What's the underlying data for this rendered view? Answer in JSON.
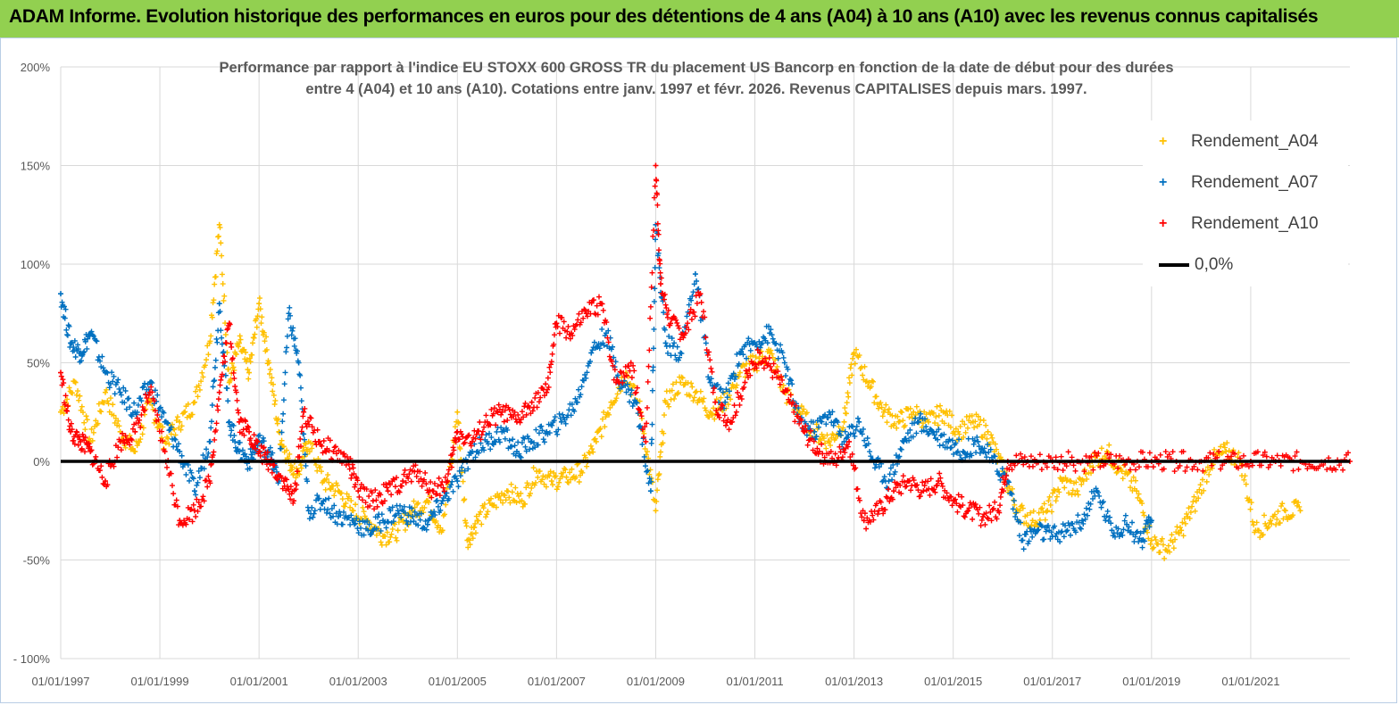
{
  "banner": {
    "title": "ADAM Informe. Evolution historique des performances en euros pour des détentions de 4 ans (A04) à 10 ans (A10) avec les revenus connus capitalisés"
  },
  "colors": {
    "banner": "#92d050",
    "A04": "#ffc000",
    "A07": "#0070c0",
    "A10": "#ff0000",
    "zero": "#000000",
    "grid": "#d9d9d9"
  },
  "chart_data": {
    "type": "scatter",
    "title_line1": "Performance par rapport à l'indice EU STOXX 600 GROSS TR  du placement US Bancorp en fonction de la date de début pour des durées",
    "title_line2": "entre 4 (A04) et 10 ans (A10). Cotations entre janv. 1997 et févr. 2026. Revenus CAPITALISES depuis mars. 1997.",
    "y_ticks": [
      "200%",
      "150%",
      "100%",
      "50%",
      "0%",
      "-50%",
      "- 100%"
    ],
    "y_tick_values": [
      200,
      150,
      100,
      50,
      0,
      -50,
      -100
    ],
    "ylim": [
      -100,
      200
    ],
    "x_ticks": [
      "01/01/1997",
      "01/01/1999",
      "01/01/2001",
      "01/01/2003",
      "01/01/2005",
      "01/01/2007",
      "01/01/2009",
      "01/01/2011",
      "01/01/2013",
      "01/01/2015",
      "01/01/2017",
      "01/01/2019",
      "01/01/2021"
    ],
    "x_tick_years": [
      1997,
      1999,
      2001,
      2003,
      2005,
      2007,
      2009,
      2011,
      2013,
      2015,
      2017,
      2019,
      2021
    ],
    "xlim": [
      1997.0,
      2023.0
    ],
    "legend_position": "top-right",
    "series": [
      {
        "name": "Rendement_A04",
        "color": "#ffc000",
        "points": [
          [
            1997.0,
            25
          ],
          [
            1997.3,
            40
          ],
          [
            1997.6,
            10
          ],
          [
            1997.9,
            35
          ],
          [
            1998.2,
            15
          ],
          [
            1998.5,
            5
          ],
          [
            1998.8,
            30
          ],
          [
            1999.1,
            10
          ],
          [
            1999.4,
            20
          ],
          [
            1999.7,
            30
          ],
          [
            2000.0,
            60
          ],
          [
            2000.2,
            120
          ],
          [
            2000.4,
            40
          ],
          [
            2000.6,
            60
          ],
          [
            2000.8,
            45
          ],
          [
            2001.0,
            80
          ],
          [
            2001.2,
            50
          ],
          [
            2001.4,
            15
          ],
          [
            2001.6,
            0
          ],
          [
            2001.8,
            -5
          ],
          [
            2002.0,
            10
          ],
          [
            2002.3,
            -10
          ],
          [
            2002.6,
            -15
          ],
          [
            2002.9,
            -25
          ],
          [
            2003.2,
            -30
          ],
          [
            2003.5,
            -38
          ],
          [
            2003.8,
            -35
          ],
          [
            2004.1,
            -25
          ],
          [
            2004.4,
            -20
          ],
          [
            2004.7,
            -35
          ],
          [
            2005.0,
            25
          ],
          [
            2005.2,
            -40
          ],
          [
            2005.4,
            -30
          ],
          [
            2005.7,
            -22
          ],
          [
            2006.0,
            -15
          ],
          [
            2006.3,
            -20
          ],
          [
            2006.6,
            -5
          ],
          [
            2006.9,
            -10
          ],
          [
            2007.2,
            -8
          ],
          [
            2007.5,
            -5
          ],
          [
            2007.8,
            10
          ],
          [
            2008.1,
            30
          ],
          [
            2008.4,
            45
          ],
          [
            2008.7,
            25
          ],
          [
            2009.0,
            -25
          ],
          [
            2009.2,
            30
          ],
          [
            2009.5,
            40
          ],
          [
            2009.8,
            35
          ],
          [
            2010.1,
            25
          ],
          [
            2010.4,
            30
          ],
          [
            2010.7,
            45
          ],
          [
            2011.0,
            50
          ],
          [
            2011.3,
            55
          ],
          [
            2011.6,
            35
          ],
          [
            2011.9,
            25
          ],
          [
            2012.2,
            15
          ],
          [
            2012.5,
            10
          ],
          [
            2012.8,
            20
          ],
          [
            2013.0,
            55
          ],
          [
            2013.3,
            40
          ],
          [
            2013.6,
            25
          ],
          [
            2013.9,
            20
          ],
          [
            2014.2,
            25
          ],
          [
            2014.5,
            20
          ],
          [
            2014.8,
            25
          ],
          [
            2015.1,
            15
          ],
          [
            2015.4,
            20
          ],
          [
            2015.7,
            15
          ],
          [
            2016.0,
            -5
          ],
          [
            2016.3,
            -25
          ],
          [
            2016.6,
            -30
          ],
          [
            2016.9,
            -25
          ],
          [
            2017.2,
            -10
          ],
          [
            2017.5,
            -15
          ],
          [
            2017.8,
            0
          ],
          [
            2018.1,
            5
          ],
          [
            2018.4,
            -5
          ],
          [
            2018.7,
            -15
          ],
          [
            2019.0,
            -40
          ],
          [
            2019.3,
            -45
          ],
          [
            2019.6,
            -35
          ],
          [
            2019.9,
            -20
          ],
          [
            2020.2,
            0
          ],
          [
            2020.5,
            5
          ],
          [
            2020.8,
            0
          ],
          [
            2021.1,
            -35
          ],
          [
            2021.4,
            -30
          ],
          [
            2021.7,
            -25
          ],
          [
            2022.0,
            -25
          ]
        ]
      },
      {
        "name": "Rendement_A07",
        "color": "#0070c0",
        "points": [
          [
            1997.0,
            85
          ],
          [
            1997.2,
            60
          ],
          [
            1997.4,
            55
          ],
          [
            1997.6,
            65
          ],
          [
            1997.9,
            45
          ],
          [
            1998.2,
            35
          ],
          [
            1998.5,
            25
          ],
          [
            1998.8,
            40
          ],
          [
            1999.1,
            20
          ],
          [
            1999.4,
            5
          ],
          [
            1999.7,
            -15
          ],
          [
            2000.0,
            10
          ],
          [
            2000.2,
            80
          ],
          [
            2000.4,
            20
          ],
          [
            2000.6,
            5
          ],
          [
            2000.8,
            0
          ],
          [
            2001.0,
            10
          ],
          [
            2001.2,
            5
          ],
          [
            2001.4,
            -10
          ],
          [
            2001.6,
            75
          ],
          [
            2001.8,
            50
          ],
          [
            2002.0,
            -25
          ],
          [
            2002.3,
            -20
          ],
          [
            2002.6,
            -28
          ],
          [
            2002.9,
            -30
          ],
          [
            2003.2,
            -35
          ],
          [
            2003.5,
            -30
          ],
          [
            2003.8,
            -25
          ],
          [
            2004.1,
            -28
          ],
          [
            2004.4,
            -32
          ],
          [
            2004.7,
            -20
          ],
          [
            2005.0,
            -10
          ],
          [
            2005.3,
            5
          ],
          [
            2005.6,
            10
          ],
          [
            2005.9,
            15
          ],
          [
            2006.2,
            5
          ],
          [
            2006.5,
            10
          ],
          [
            2006.8,
            15
          ],
          [
            2007.1,
            20
          ],
          [
            2007.4,
            30
          ],
          [
            2007.7,
            55
          ],
          [
            2008.0,
            65
          ],
          [
            2008.3,
            40
          ],
          [
            2008.6,
            30
          ],
          [
            2008.9,
            -15
          ],
          [
            2009.0,
            120
          ],
          [
            2009.2,
            60
          ],
          [
            2009.5,
            55
          ],
          [
            2009.8,
            95
          ],
          [
            2010.1,
            40
          ],
          [
            2010.4,
            30
          ],
          [
            2010.7,
            55
          ],
          [
            2011.0,
            60
          ],
          [
            2011.3,
            65
          ],
          [
            2011.6,
            50
          ],
          [
            2011.9,
            20
          ],
          [
            2012.2,
            15
          ],
          [
            2012.5,
            25
          ],
          [
            2012.8,
            10
          ],
          [
            2013.1,
            20
          ],
          [
            2013.4,
            0
          ],
          [
            2013.7,
            -10
          ],
          [
            2014.0,
            10
          ],
          [
            2014.3,
            20
          ],
          [
            2014.6,
            15
          ],
          [
            2014.9,
            10
          ],
          [
            2015.2,
            5
          ],
          [
            2015.5,
            10
          ],
          [
            2015.8,
            0
          ],
          [
            2016.1,
            -10
          ],
          [
            2016.4,
            -40
          ],
          [
            2016.7,
            -35
          ],
          [
            2017.0,
            -38
          ],
          [
            2017.3,
            -35
          ],
          [
            2017.6,
            -30
          ],
          [
            2017.9,
            -15
          ],
          [
            2018.2,
            -35
          ],
          [
            2018.5,
            -32
          ],
          [
            2018.8,
            -40
          ],
          [
            2019.0,
            -30
          ]
        ]
      },
      {
        "name": "Rendement_A10",
        "color": "#ff0000",
        "points": [
          [
            1997.0,
            45
          ],
          [
            1997.2,
            15
          ],
          [
            1997.4,
            10
          ],
          [
            1997.6,
            5
          ],
          [
            1997.9,
            -10
          ],
          [
            1998.2,
            10
          ],
          [
            1998.5,
            15
          ],
          [
            1998.8,
            35
          ],
          [
            1999.1,
            5
          ],
          [
            1999.4,
            -30
          ],
          [
            1999.7,
            -25
          ],
          [
            2000.0,
            -10
          ],
          [
            2000.2,
            35
          ],
          [
            2000.4,
            70
          ],
          [
            2000.6,
            20
          ],
          [
            2000.8,
            15
          ],
          [
            2001.0,
            5
          ],
          [
            2001.2,
            0
          ],
          [
            2001.5,
            -10
          ],
          [
            2001.7,
            -20
          ],
          [
            2001.9,
            25
          ],
          [
            2002.2,
            10
          ],
          [
            2002.5,
            5
          ],
          [
            2002.8,
            0
          ],
          [
            2003.0,
            -15
          ],
          [
            2003.3,
            -20
          ],
          [
            2003.6,
            -15
          ],
          [
            2003.9,
            -10
          ],
          [
            2004.2,
            -5
          ],
          [
            2004.5,
            -15
          ],
          [
            2004.8,
            -10
          ],
          [
            2005.0,
            15
          ],
          [
            2005.3,
            10
          ],
          [
            2005.6,
            20
          ],
          [
            2005.9,
            25
          ],
          [
            2006.2,
            20
          ],
          [
            2006.5,
            30
          ],
          [
            2006.8,
            35
          ],
          [
            2007.0,
            70
          ],
          [
            2007.3,
            65
          ],
          [
            2007.6,
            75
          ],
          [
            2007.9,
            80
          ],
          [
            2008.2,
            40
          ],
          [
            2008.5,
            50
          ],
          [
            2008.8,
            10
          ],
          [
            2009.0,
            150
          ],
          [
            2009.1,
            90
          ],
          [
            2009.3,
            70
          ],
          [
            2009.6,
            65
          ],
          [
            2009.9,
            85
          ],
          [
            2010.2,
            30
          ],
          [
            2010.5,
            20
          ],
          [
            2010.8,
            40
          ],
          [
            2011.1,
            55
          ],
          [
            2011.4,
            45
          ],
          [
            2011.7,
            30
          ],
          [
            2012.0,
            15
          ],
          [
            2012.3,
            5
          ],
          [
            2012.6,
            0
          ],
          [
            2012.9,
            10
          ],
          [
            2013.2,
            -30
          ],
          [
            2013.5,
            -25
          ],
          [
            2013.8,
            -15
          ],
          [
            2014.1,
            -10
          ],
          [
            2014.4,
            -15
          ],
          [
            2014.7,
            -10
          ],
          [
            2015.0,
            -20
          ],
          [
            2015.3,
            -25
          ],
          [
            2015.6,
            -28
          ],
          [
            2015.9,
            -25
          ],
          [
            2016.1,
            0
          ],
          [
            2016.5,
            0
          ],
          [
            2017.0,
            0
          ],
          [
            2017.5,
            0
          ],
          [
            2018.0,
            0
          ],
          [
            2018.5,
            0
          ],
          [
            2019.0,
            0
          ],
          [
            2019.5,
            0
          ],
          [
            2020.0,
            0
          ],
          [
            2020.5,
            0
          ],
          [
            2021.0,
            0
          ],
          [
            2021.5,
            0
          ],
          [
            2022.0,
            0
          ],
          [
            2022.5,
            0
          ],
          [
            2023.0,
            0
          ]
        ]
      }
    ],
    "reference_line": {
      "name": "0,0%",
      "y": 0
    },
    "legend": [
      {
        "label": "Rendement_A04",
        "kind": "marker",
        "color": "#ffc000"
      },
      {
        "label": "Rendement_A07",
        "kind": "marker",
        "color": "#0070c0"
      },
      {
        "label": "Rendement_A10",
        "kind": "marker",
        "color": "#ff0000"
      },
      {
        "label": "0,0%",
        "kind": "line",
        "color": "#000000"
      }
    ]
  }
}
